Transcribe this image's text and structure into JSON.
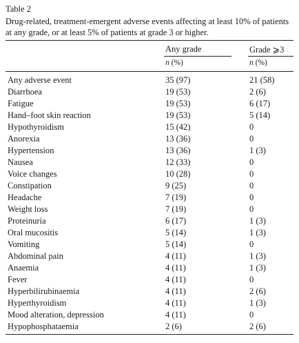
{
  "table": {
    "label": "Table 2",
    "caption": "Drug-related, treatment-emergent adverse events affecting at least 10% of patients at any grade, or at least 5% of patients at grade 3 or higher.",
    "columns": {
      "any_grade": "Any grade",
      "grade3": "Grade ⩾3",
      "unit_n": "n",
      "unit_pct": "(%)"
    },
    "rows": [
      {
        "event": "Any adverse event",
        "any": "35 (97)",
        "g3": "21 (58)"
      },
      {
        "event": "Diarrhoea",
        "any": "19 (53)",
        "g3": "2 (6)"
      },
      {
        "event": "Fatigue",
        "any": "19 (53)",
        "g3": "6 (17)"
      },
      {
        "event": "Hand–foot skin reaction",
        "any": "19 (53)",
        "g3": "5 (14)"
      },
      {
        "event": "Hypothyroidism",
        "any": "15 (42)",
        "g3": "0"
      },
      {
        "event": "Anorexia",
        "any": "13 (36)",
        "g3": "0"
      },
      {
        "event": "Hypertension",
        "any": "13 (36)",
        "g3": "1 (3)"
      },
      {
        "event": "Nausea",
        "any": "12 (33)",
        "g3": "0"
      },
      {
        "event": "Voice changes",
        "any": "10 (28)",
        "g3": "0"
      },
      {
        "event": "Constipation",
        "any": "9 (25)",
        "g3": "0"
      },
      {
        "event": "Headache",
        "any": "7 (19)",
        "g3": "0"
      },
      {
        "event": "Weight loss",
        "any": "7 (19)",
        "g3": "0"
      },
      {
        "event": "Proteinuria",
        "any": "6 (17)",
        "g3": "1 (3)"
      },
      {
        "event": "Oral mucositis",
        "any": "5 (14)",
        "g3": "1 (3)"
      },
      {
        "event": "Vomiting",
        "any": "5 (14)",
        "g3": "0"
      },
      {
        "event": "Abdominal pain",
        "any": "4 (11)",
        "g3": "1 (3)"
      },
      {
        "event": "Anaemia",
        "any": "4 (11)",
        "g3": "1 (3)"
      },
      {
        "event": "Fever",
        "any": "4 (11)",
        "g3": "0"
      },
      {
        "event": "Hyperbilirubinaemia",
        "any": "4 (11)",
        "g3": "2 (6)"
      },
      {
        "event": "Hyperthyroidism",
        "any": "4 (11)",
        "g3": "1 (3)"
      },
      {
        "event": "Mood alteration, depression",
        "any": "4 (11)",
        "g3": "0"
      },
      {
        "event": "Hypophosphataemia",
        "any": "2 (6)",
        "g3": "2 (6)"
      }
    ]
  }
}
